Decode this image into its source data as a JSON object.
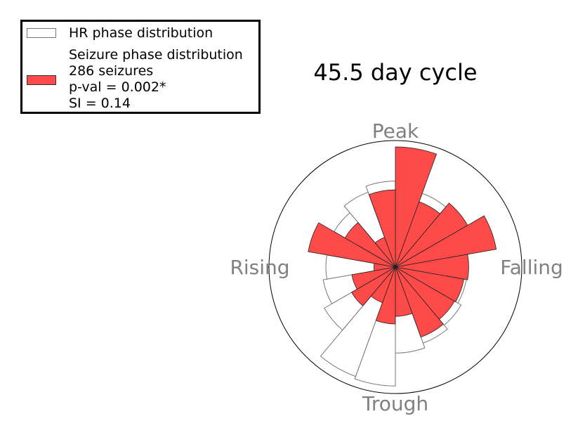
{
  "chart_data": {
    "type": "polar-histogram",
    "title": "45.5 day cycle",
    "phase_labels": {
      "top": "Peak",
      "right": "Falling",
      "bottom": "Trough",
      "left": "Rising"
    },
    "bin_count": 18,
    "rmax": 1.0,
    "series": [
      {
        "name": "HR phase distribution",
        "values": [
          0.68,
          0.62,
          0.6,
          0.58,
          0.57,
          0.57,
          0.6,
          0.64,
          0.68,
          0.94,
          0.92,
          0.65,
          0.58,
          0.55,
          0.54,
          0.56,
          0.63,
          0.68
        ]
      },
      {
        "name": "Seizure phase distribution",
        "values": [
          0.95,
          0.55,
          0.66,
          0.81,
          0.58,
          0.55,
          0.54,
          0.59,
          0.39,
          0.45,
          0.3,
          0.4,
          0.35,
          0.17,
          0.7,
          0.46,
          0.25,
          0.61
        ]
      }
    ],
    "colors": {
      "hr_fill": "#ffffff",
      "hr_edge": "#777777",
      "seizure_fill": "#ff4a4a",
      "seizure_edge": "#222222"
    }
  },
  "legend": {
    "hr_label": "HR phase distribution",
    "seizure_lines": [
      "Seizure phase distribution",
      "286 seizures",
      "p-val = 0.002*",
      "SI = 0.14"
    ]
  }
}
